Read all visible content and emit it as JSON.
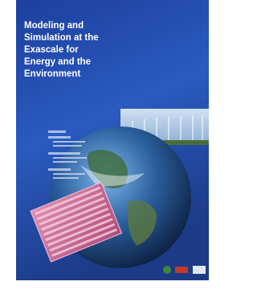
{
  "cover": {
    "title_lines": [
      "Modeling and",
      "Simulation at the",
      "Exascale for",
      "Energy and the",
      "Environment"
    ]
  }
}
